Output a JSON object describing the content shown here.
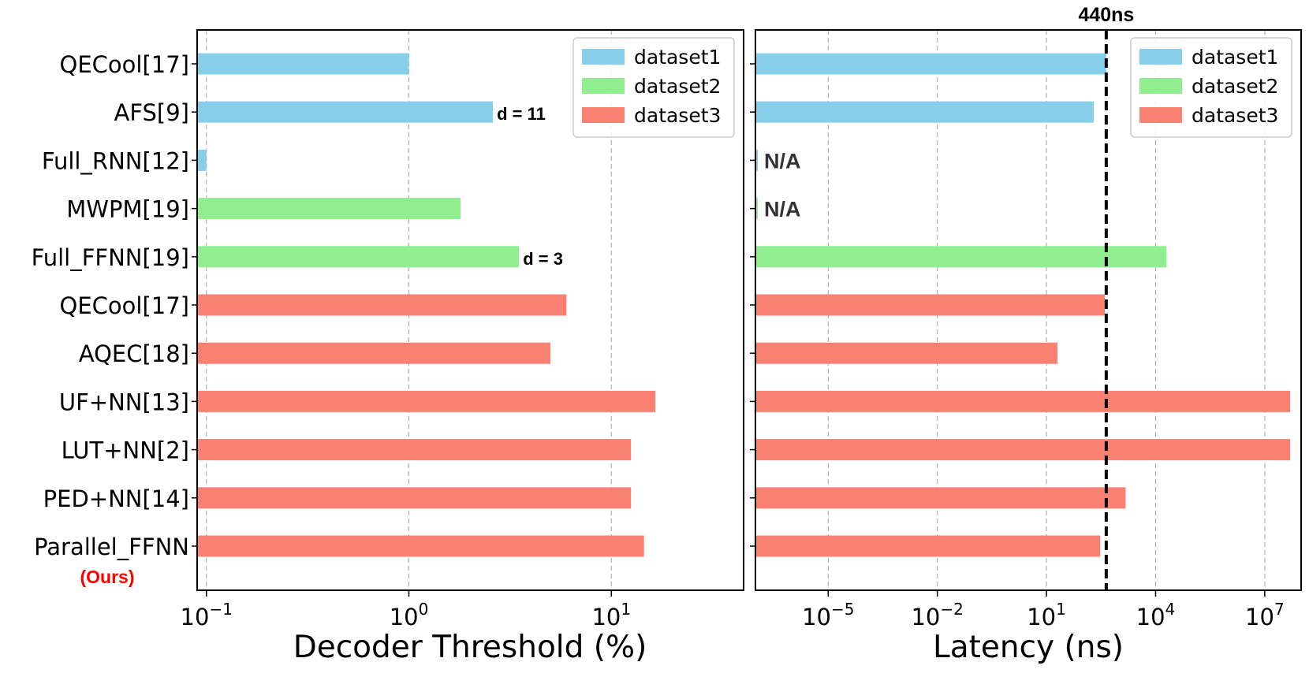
{
  "colors": {
    "dataset1": "#87ceeb",
    "dataset2": "#90ee90",
    "dataset3": "#fa8072",
    "ours_label": "#ff0000",
    "grid": "#b0b0b0",
    "axis": "#000000"
  },
  "chart_data": [
    {
      "type": "bar",
      "orientation": "horizontal",
      "xscale": "log",
      "xlabel": "Decoder Threshold (%)",
      "xlim": [
        0.09,
        45
      ],
      "xticks": [
        0.1,
        1,
        10
      ],
      "xtick_labels": [
        {
          "base": "10",
          "exp": "−1"
        },
        {
          "base": "10",
          "exp": "0"
        },
        {
          "base": "10",
          "exp": "1"
        }
      ],
      "grid": "x-dashed",
      "legend": {
        "position": "top-right",
        "entries": [
          "dataset1",
          "dataset2",
          "dataset3"
        ]
      },
      "categories": [
        "QECool[17]",
        "AFS[9]",
        "Full_RNN[12]",
        "MWPM[19]",
        "Full_FFNN[19]",
        "QECool[17]",
        "AQEC[18]",
        "UF+NN[13]",
        "LUT+NN[2]",
        "PED+NN[14]",
        "Parallel_FFNN"
      ],
      "category_sublabels": {
        "Parallel_FFNN": "(Ours)"
      },
      "datasets": [
        "dataset1",
        "dataset1",
        "dataset1",
        "dataset2",
        "dataset2",
        "dataset3",
        "dataset3",
        "dataset3",
        "dataset3",
        "dataset3",
        "dataset3"
      ],
      "values": [
        1.0,
        2.6,
        0.1,
        1.8,
        3.5,
        6.0,
        5.0,
        16.5,
        12.5,
        12.5,
        14.5
      ],
      "annotations": [
        {
          "category_index": 1,
          "text": "d = 11"
        },
        {
          "category_index": 4,
          "text": "d = 3"
        }
      ]
    },
    {
      "type": "bar",
      "orientation": "horizontal",
      "xscale": "log",
      "xlabel": "Latency (ns)",
      "xlim": [
        1e-07,
        100000000.0
      ],
      "xticks": [
        1e-05,
        0.01,
        10,
        10000,
        10000000
      ],
      "xtick_labels": [
        {
          "base": "10",
          "exp": "−5"
        },
        {
          "base": "10",
          "exp": "−2"
        },
        {
          "base": "10",
          "exp": "1"
        },
        {
          "base": "10",
          "exp": "4"
        },
        {
          "base": "10",
          "exp": "7"
        }
      ],
      "grid": "x-dashed",
      "legend": {
        "position": "top-right",
        "entries": [
          "dataset1",
          "dataset2",
          "dataset3"
        ]
      },
      "reference_line": {
        "value": 440,
        "label": "440ns",
        "style": "dashed"
      },
      "categories": [
        "QECool[17]",
        "AFS[9]",
        "Full_RNN[12]",
        "MWPM[19]",
        "Full_FFNN[19]",
        "QECool[17]",
        "AQEC[18]",
        "UF+NN[13]",
        "LUT+NN[2]",
        "PED+NN[14]",
        "Parallel_FFNN"
      ],
      "datasets": [
        "dataset1",
        "dataset1",
        "dataset1",
        "dataset2",
        "dataset2",
        "dataset3",
        "dataset3",
        "dataset3",
        "dataset3",
        "dataset3",
        "dataset3"
      ],
      "values": [
        440,
        200,
        null,
        null,
        20000,
        400,
        20,
        50000000,
        50000000,
        1500,
        300
      ],
      "annotations": [
        {
          "category_index": 2,
          "text": "N/A"
        },
        {
          "category_index": 3,
          "text": "N/A"
        }
      ]
    }
  ]
}
